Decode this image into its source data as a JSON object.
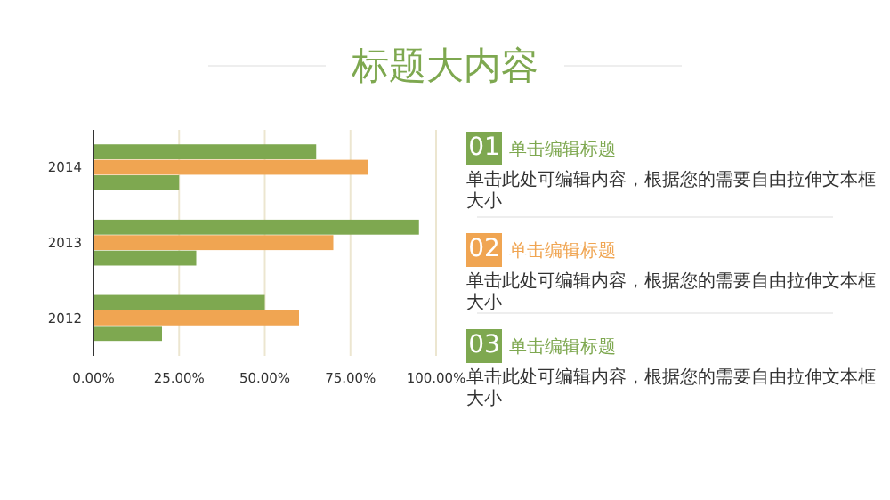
{
  "chart_data": [
    {
      "type": "bar",
      "orientation": "horizontal",
      "title": "标题大内容",
      "categories": [
        "2014",
        "2013",
        "2012"
      ],
      "series": [
        {
          "color": "#7ea850",
          "values": [
            65,
            95,
            50
          ]
        },
        {
          "color": "#f0a552",
          "values": [
            80,
            70,
            60
          ]
        },
        {
          "color": "#7ea850",
          "values": [
            25,
            30,
            20
          ]
        }
      ],
      "xlim": [
        0,
        100
      ],
      "xticks": [
        {
          "value": 0,
          "label": "0.00%"
        },
        {
          "value": 25,
          "label": "25.00%"
        },
        {
          "value": 50,
          "label": "50.00%"
        },
        {
          "value": 75,
          "label": "75.00%"
        },
        {
          "value": 100,
          "label": "100.00%"
        }
      ],
      "grid": "x"
    },
    {
      "type": "other",
      "annotations": [
        "01",
        "单击编辑标题",
        "单击此处可编辑内容，根据您的需要自由拉伸文本框大小",
        "02",
        "单击编辑标题",
        "单击此处可编辑内容，根据您的需要自由拉伸文本框大小",
        "03",
        "单击编辑标题",
        "单击此处可编辑内容，根据您的需要自由拉伸文本框大小"
      ],
      "colors": [
        "#7ea850",
        "#f0a552",
        "#7ea850"
      ]
    }
  ]
}
